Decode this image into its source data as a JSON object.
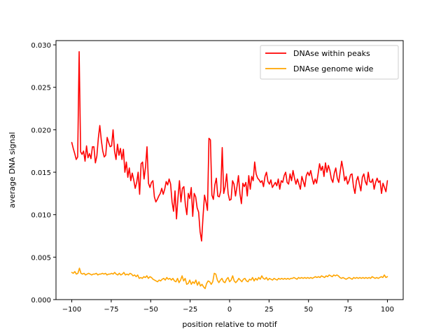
{
  "chart_data": {
    "type": "line",
    "title": "",
    "xlabel": "position relative to motif",
    "ylabel": "average DNA signal",
    "xlim": [
      -110,
      110
    ],
    "ylim": [
      0.0,
      0.0305
    ],
    "x_ticks": [
      -100,
      -75,
      -50,
      -25,
      0,
      25,
      50,
      75,
      100
    ],
    "x_tick_labels": [
      "−100",
      "−75",
      "−50",
      "−25",
      "0",
      "25",
      "50",
      "75",
      "100"
    ],
    "y_ticks": [
      0.0,
      0.005,
      0.01,
      0.015,
      0.02,
      0.025,
      0.03
    ],
    "y_tick_labels": [
      "0.000",
      "0.005",
      "0.010",
      "0.015",
      "0.020",
      "0.025",
      "0.030"
    ],
    "grid": false,
    "legend_position": "top-right",
    "x_range": [
      -100,
      100
    ],
    "series": [
      {
        "name": "DNAse within peaks",
        "color": "#ff0000",
        "values": [
          0.0185,
          0.0178,
          0.0172,
          0.0165,
          0.0168,
          0.0292,
          0.0174,
          0.0171,
          0.0175,
          0.0163,
          0.0181,
          0.0167,
          0.0172,
          0.0166,
          0.018,
          0.018,
          0.0161,
          0.0169,
          0.019,
          0.0205,
          0.0188,
          0.0175,
          0.0168,
          0.017,
          0.0191,
          0.0185,
          0.018,
          0.0181,
          0.02,
          0.0175,
          0.0165,
          0.0183,
          0.017,
          0.0178,
          0.0165,
          0.0177,
          0.015,
          0.0162,
          0.0144,
          0.0155,
          0.014,
          0.0149,
          0.0141,
          0.0131,
          0.0138,
          0.015,
          0.0124,
          0.016,
          0.0162,
          0.0142,
          0.0156,
          0.018,
          0.0137,
          0.0132,
          0.0138,
          0.014,
          0.0121,
          0.0115,
          0.0118,
          0.0122,
          0.0125,
          0.0131,
          0.0124,
          0.013,
          0.0139,
          0.0135,
          0.0142,
          0.0136,
          0.0115,
          0.0104,
          0.0128,
          0.0095,
          0.012,
          0.014,
          0.0115,
          0.0131,
          0.0133,
          0.0112,
          0.01,
          0.0125,
          0.0119,
          0.0132,
          0.0098,
          0.0125,
          0.0121,
          0.0108,
          0.0103,
          0.008,
          0.0069,
          0.0098,
          0.0123,
          0.0115,
          0.0105,
          0.019,
          0.0188,
          0.0123,
          0.0118,
          0.0135,
          0.0143,
          0.0122,
          0.0121,
          0.0128,
          0.0179,
          0.0125,
          0.0133,
          0.0148,
          0.0125,
          0.0117,
          0.0118,
          0.014,
          0.0136,
          0.0122,
          0.0133,
          0.0146,
          0.0125,
          0.0113,
          0.0137,
          0.0133,
          0.0138,
          0.0122,
          0.0146,
          0.013,
          0.0145,
          0.014,
          0.0162,
          0.0148,
          0.0143,
          0.0141,
          0.0138,
          0.014,
          0.0133,
          0.0145,
          0.015,
          0.0139,
          0.0136,
          0.0141,
          0.0132,
          0.0135,
          0.0138,
          0.0134,
          0.0142,
          0.013,
          0.014,
          0.0138,
          0.0146,
          0.015,
          0.0138,
          0.0136,
          0.0148,
          0.014,
          0.0152,
          0.0143,
          0.0136,
          0.0142,
          0.0136,
          0.013,
          0.0145,
          0.0139,
          0.0133,
          0.0146,
          0.015,
          0.0146,
          0.0152,
          0.0143,
          0.0136,
          0.0142,
          0.0137,
          0.0148,
          0.016,
          0.0152,
          0.0157,
          0.0145,
          0.0161,
          0.015,
          0.0158,
          0.0152,
          0.0142,
          0.0138,
          0.0149,
          0.0155,
          0.0143,
          0.0138,
          0.0151,
          0.0163,
          0.0153,
          0.014,
          0.0145,
          0.0136,
          0.014,
          0.0147,
          0.0148,
          0.0133,
          0.0125,
          0.014,
          0.0145,
          0.0136,
          0.0128,
          0.0144,
          0.0148,
          0.0139,
          0.0135,
          0.015,
          0.0139,
          0.0138,
          0.0142,
          0.013,
          0.0138,
          0.0143,
          0.0138,
          0.014,
          0.0125,
          0.0137,
          0.0132,
          0.0127,
          0.014
        ]
      },
      {
        "name": "DNAse genome wide",
        "color": "#ffa500",
        "values": [
          0.0032,
          0.0031,
          0.0033,
          0.003,
          0.0031,
          0.0037,
          0.0031,
          0.003,
          0.0031,
          0.0029,
          0.003,
          0.0031,
          0.003,
          0.0029,
          0.003,
          0.003,
          0.0031,
          0.0029,
          0.003,
          0.003,
          0.0031,
          0.003,
          0.0031,
          0.0029,
          0.003,
          0.003,
          0.0031,
          0.003,
          0.0032,
          0.003,
          0.0029,
          0.0031,
          0.0029,
          0.003,
          0.0032,
          0.0029,
          0.003,
          0.0029,
          0.0031,
          0.003,
          0.0028,
          0.0029,
          0.0027,
          0.0029,
          0.0025,
          0.0026,
          0.0025,
          0.0027,
          0.0026,
          0.0028,
          0.0025,
          0.0027,
          0.0026,
          0.0024,
          0.0023,
          0.0022,
          0.0021,
          0.0023,
          0.0022,
          0.0024,
          0.0025,
          0.0023,
          0.0026,
          0.0024,
          0.0025,
          0.0023,
          0.0025,
          0.0022,
          0.0021,
          0.0025,
          0.002,
          0.0023,
          0.0028,
          0.0022,
          0.0025,
          0.0018,
          0.0019,
          0.0023,
          0.0018,
          0.0021,
          0.0019,
          0.0023,
          0.0017,
          0.0021,
          0.0016,
          0.0018,
          0.0015,
          0.0013,
          0.0019,
          0.0022,
          0.0021,
          0.0018,
          0.0021,
          0.0031,
          0.003,
          0.0023,
          0.002,
          0.0023,
          0.0025,
          0.0021,
          0.002,
          0.0024,
          0.0026,
          0.0021,
          0.0023,
          0.0028,
          0.0022,
          0.002,
          0.0022,
          0.0025,
          0.0023,
          0.0021,
          0.0024,
          0.0025,
          0.0022,
          0.0021,
          0.0024,
          0.0023,
          0.0026,
          0.0022,
          0.0025,
          0.0023,
          0.0026,
          0.0024,
          0.0028,
          0.0025,
          0.0024,
          0.0026,
          0.0023,
          0.0025,
          0.0024,
          0.0023,
          0.0025,
          0.0024,
          0.0023,
          0.0025,
          0.0024,
          0.0025,
          0.0024,
          0.0025,
          0.0024,
          0.0025,
          0.0024,
          0.0025,
          0.0025,
          0.0026,
          0.0025,
          0.0024,
          0.0026,
          0.0025,
          0.0026,
          0.0025,
          0.0026,
          0.0025,
          0.0026,
          0.0025,
          0.0026,
          0.0025,
          0.0026,
          0.0027,
          0.0026,
          0.0027,
          0.0026,
          0.0028,
          0.0027,
          0.0026,
          0.0028,
          0.0027,
          0.0029,
          0.0028,
          0.0027,
          0.0029,
          0.0028,
          0.0029,
          0.0028,
          0.0026,
          0.0025,
          0.0026,
          0.0025,
          0.0024,
          0.0025,
          0.0026,
          0.0025,
          0.0024,
          0.0026,
          0.0025,
          0.0026,
          0.0025,
          0.0026,
          0.0025,
          0.0026,
          0.0025,
          0.0026,
          0.0025,
          0.0026,
          0.0025,
          0.0027,
          0.0026,
          0.0025,
          0.0026,
          0.0025,
          0.0026,
          0.0027,
          0.0026,
          0.0029,
          0.0026,
          0.0027
        ]
      }
    ]
  }
}
